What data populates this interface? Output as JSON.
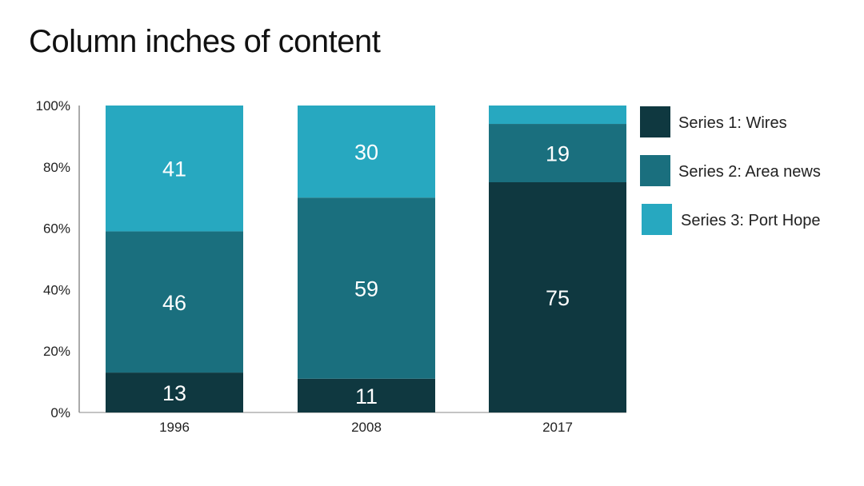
{
  "chart_data": {
    "type": "bar",
    "stacked": true,
    "title": "Column inches of content",
    "categories": [
      "1996",
      "2008",
      "2017"
    ],
    "series": [
      {
        "name": "Series 1: Wires",
        "values": [
          13,
          11,
          75
        ],
        "color": "#0f3840",
        "labels": [
          "13",
          "11",
          "75"
        ]
      },
      {
        "name": "Series 2: Area news",
        "values": [
          46,
          59,
          19
        ],
        "color": "#1a6f7e",
        "labels": [
          "46",
          "59",
          "19"
        ]
      },
      {
        "name": "Series 3: Port Hope",
        "values": [
          41,
          30,
          6
        ],
        "color": "#27a8c0",
        "labels": [
          "41",
          "30",
          ""
        ]
      }
    ],
    "yticks": [
      "0%",
      "20%",
      "40%",
      "60%",
      "80%",
      "100%"
    ],
    "ylim": [
      0,
      100
    ],
    "xlabel": "",
    "ylabel": "",
    "grid": false,
    "legend": "right"
  }
}
